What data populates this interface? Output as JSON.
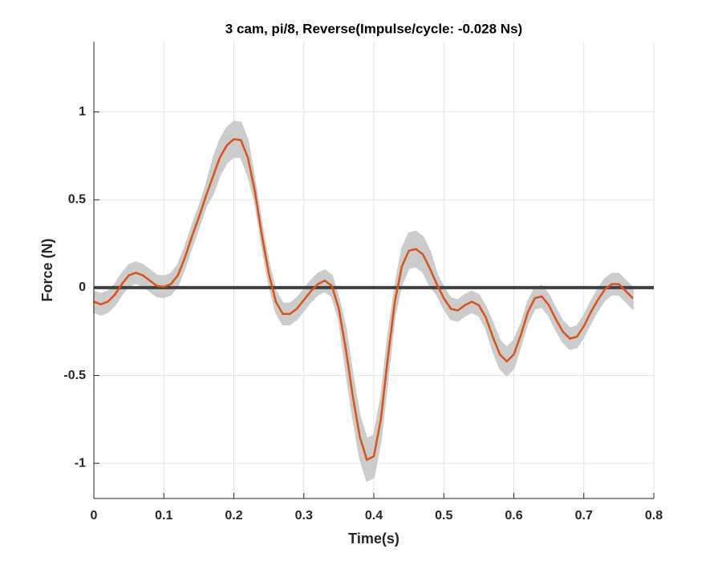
{
  "chart_data": {
    "type": "line",
    "title": "3 cam, pi/8, Reverse(Impulse/cycle: -0.028 Ns)",
    "xlabel": "Time(s)",
    "ylabel": "Force (N)",
    "xlim": [
      0,
      0.8
    ],
    "ylim": [
      -1.2,
      1.4
    ],
    "xticks": [
      0,
      0.1,
      0.2,
      0.3,
      0.4,
      0.5,
      0.6,
      0.7,
      0.8
    ],
    "yticks": [
      -1,
      -0.5,
      0,
      0.5,
      1
    ],
    "grid": true,
    "hline": {
      "value": 0,
      "color": "#404040"
    },
    "x": [
      0,
      0.01,
      0.02,
      0.03,
      0.04,
      0.05,
      0.06,
      0.07,
      0.08,
      0.09,
      0.1,
      0.11,
      0.12,
      0.13,
      0.14,
      0.15,
      0.16,
      0.17,
      0.18,
      0.19,
      0.2,
      0.21,
      0.22,
      0.23,
      0.24,
      0.25,
      0.26,
      0.27,
      0.28,
      0.29,
      0.3,
      0.31,
      0.32,
      0.33,
      0.34,
      0.35,
      0.36,
      0.37,
      0.38,
      0.39,
      0.4,
      0.41,
      0.42,
      0.43,
      0.44,
      0.45,
      0.46,
      0.47,
      0.48,
      0.49,
      0.5,
      0.51,
      0.52,
      0.53,
      0.54,
      0.55,
      0.56,
      0.57,
      0.58,
      0.59,
      0.6,
      0.61,
      0.62,
      0.63,
      0.64,
      0.65,
      0.66,
      0.67,
      0.68,
      0.69,
      0.7,
      0.71,
      0.72,
      0.73,
      0.74,
      0.75,
      0.76,
      0.77
    ],
    "series": [
      {
        "color": "#d95319",
        "band_color": "#cccccc",
        "values": [
          -0.08,
          -0.095,
          -0.08,
          -0.04,
          0.02,
          0.07,
          0.085,
          0.07,
          0.04,
          0.01,
          0.005,
          0.02,
          0.07,
          0.17,
          0.29,
          0.4,
          0.52,
          0.63,
          0.74,
          0.81,
          0.845,
          0.84,
          0.74,
          0.55,
          0.3,
          0.08,
          -0.08,
          -0.15,
          -0.15,
          -0.12,
          -0.07,
          -0.02,
          0.02,
          0.04,
          0.01,
          -0.12,
          -0.35,
          -0.62,
          -0.85,
          -0.98,
          -0.96,
          -0.75,
          -0.4,
          -0.08,
          0.12,
          0.21,
          0.22,
          0.19,
          0.11,
          0.02,
          -0.06,
          -0.12,
          -0.13,
          -0.1,
          -0.08,
          -0.1,
          -0.17,
          -0.28,
          -0.38,
          -0.42,
          -0.38,
          -0.27,
          -0.14,
          -0.06,
          -0.05,
          -0.1,
          -0.18,
          -0.25,
          -0.29,
          -0.28,
          -0.22,
          -0.14,
          -0.07,
          -0.01,
          0.02,
          0.02,
          -0.02,
          -0.06
        ],
        "error": [
          0.06,
          0.06,
          0.06,
          0.06,
          0.06,
          0.06,
          0.06,
          0.06,
          0.06,
          0.06,
          0.06,
          0.06,
          0.06,
          0.06,
          0.06,
          0.06,
          0.06,
          0.1,
          0.1,
          0.1,
          0.1,
          0.1,
          0.1,
          0.06,
          0.06,
          0.06,
          0.06,
          0.06,
          0.06,
          0.06,
          0.06,
          0.06,
          0.06,
          0.06,
          0.06,
          0.06,
          0.12,
          0.12,
          0.12,
          0.12,
          0.12,
          0.12,
          0.12,
          0.08,
          0.1,
          0.1,
          0.1,
          0.1,
          0.1,
          0.06,
          0.06,
          0.06,
          0.06,
          0.06,
          0.06,
          0.06,
          0.06,
          0.08,
          0.08,
          0.08,
          0.08,
          0.06,
          0.06,
          0.06,
          0.06,
          0.06,
          0.06,
          0.06,
          0.06,
          0.06,
          0.06,
          0.06,
          0.06,
          0.06,
          0.06,
          0.06,
          0.06,
          0.06
        ]
      }
    ]
  }
}
